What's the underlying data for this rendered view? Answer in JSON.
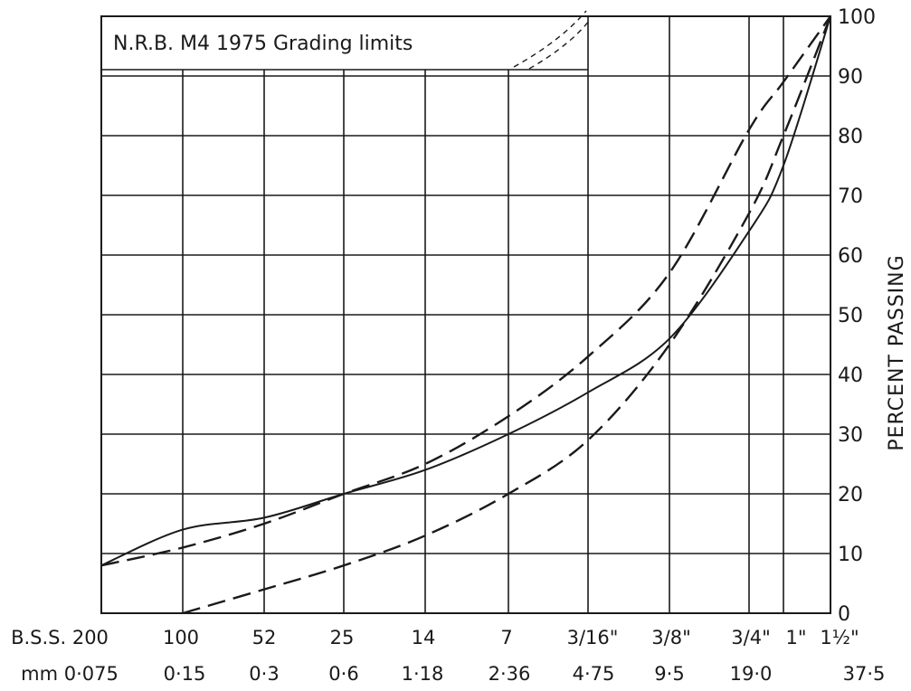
{
  "chart_data": {
    "type": "line",
    "title": "N.R.B. M4 1975 Grading limits",
    "xlabel": "",
    "ylabel": "PERCENT PASSING",
    "x_scale": "log",
    "ylim": [
      0,
      100
    ],
    "grid": true,
    "yticks": [
      "0",
      "10",
      "20",
      "30",
      "40",
      "50",
      "60",
      "70",
      "80",
      "90",
      "100"
    ],
    "xrow_bss": [
      "B.S.S. 200",
      "100",
      "52",
      "25",
      "14",
      "7",
      "3/16\"",
      "3/8\"",
      "3/4\"",
      "1\"",
      "1½\""
    ],
    "xrow_mm": [
      "mm 0·075",
      "0·15",
      "0·3",
      "0·6",
      "1·18",
      "2·36",
      "4·75",
      "9·5",
      "19·0",
      "37·5"
    ],
    "x_mm_values": [
      0.075,
      0.15,
      0.3,
      0.6,
      1.18,
      2.36,
      4.75,
      9.5,
      19.0,
      25.0,
      37.5
    ],
    "series": [
      {
        "style": "solid",
        "x": [
          0.075,
          0.15,
          0.3,
          0.6,
          1.18,
          2.36,
          4.75,
          9.5,
          19.0,
          25.0,
          37.5
        ],
        "y": [
          8,
          14,
          16,
          20,
          24,
          30,
          37,
          46,
          64,
          75,
          100
        ]
      },
      {
        "style": "dashed",
        "x": [
          0.075,
          0.15,
          0.3,
          0.6,
          1.18,
          2.36,
          4.75,
          9.5,
          19.0,
          25.0,
          37.5
        ],
        "y": [
          8,
          11,
          15,
          20,
          25,
          33,
          43,
          57,
          81,
          89,
          100
        ]
      },
      {
        "style": "dashed",
        "x": [
          0.15,
          0.3,
          0.6,
          1.18,
          2.36,
          4.75,
          9.5,
          19.0,
          25.0,
          37.5
        ],
        "y": [
          0,
          4,
          8,
          13,
          20,
          29,
          45,
          67,
          80,
          100
        ]
      }
    ]
  }
}
